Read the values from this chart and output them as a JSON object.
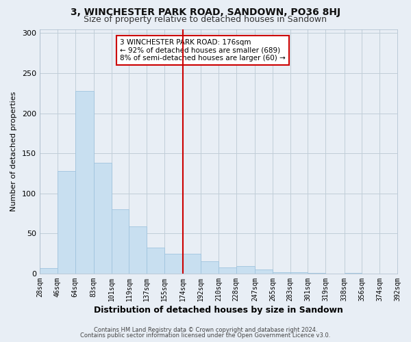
{
  "title": "3, WINCHESTER PARK ROAD, SANDOWN, PO36 8HJ",
  "subtitle": "Size of property relative to detached houses in Sandown",
  "xlabel": "Distribution of detached houses by size in Sandown",
  "ylabel": "Number of detached properties",
  "footer_line1": "Contains HM Land Registry data © Crown copyright and database right 2024.",
  "footer_line2": "Contains public sector information licensed under the Open Government Licence v3.0.",
  "bar_edges": [
    28,
    46,
    64,
    83,
    101,
    119,
    137,
    155,
    174,
    192,
    210,
    228,
    247,
    265,
    283,
    301,
    319,
    338,
    356,
    374,
    392
  ],
  "bar_heights": [
    7,
    128,
    228,
    138,
    80,
    59,
    32,
    25,
    25,
    15,
    8,
    9,
    5,
    2,
    2,
    1,
    0,
    1,
    0,
    0
  ],
  "bar_color": "#c8dff0",
  "bar_edgecolor": "#a0c4de",
  "vline_x": 174,
  "vline_color": "#cc0000",
  "annotation_title": "3 WINCHESTER PARK ROAD: 176sqm",
  "annotation_line1": "← 92% of detached houses are smaller (689)",
  "annotation_line2": "8% of semi-detached houses are larger (60) →",
  "annotation_box_color": "#ffffff",
  "annotation_border_color": "#cc0000",
  "tick_labels": [
    "28sqm",
    "46sqm",
    "64sqm",
    "83sqm",
    "101sqm",
    "119sqm",
    "137sqm",
    "155sqm",
    "174sqm",
    "192sqm",
    "210sqm",
    "228sqm",
    "247sqm",
    "265sqm",
    "283sqm",
    "301sqm",
    "319sqm",
    "338sqm",
    "356sqm",
    "374sqm",
    "392sqm"
  ],
  "ylim": [
    0,
    305
  ],
  "yticks": [
    0,
    50,
    100,
    150,
    200,
    250,
    300
  ],
  "background_color": "#e8eef5",
  "plot_background_color": "#e8eef5",
  "grid_color": "#c0cdd8",
  "title_fontsize": 10,
  "subtitle_fontsize": 9,
  "xlabel_fontsize": 9,
  "ylabel_fontsize": 8,
  "tick_fontsize": 7,
  "annotation_title_fontsize": 8,
  "annotation_text_fontsize": 7.5,
  "footer_fontsize": 6
}
